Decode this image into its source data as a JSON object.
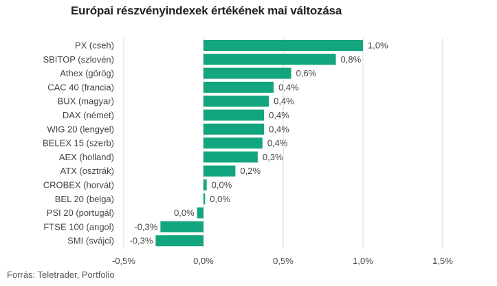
{
  "title": "Európai részvényindexek értékének mai változása",
  "source": "Forrás: Teletrader, Portfolio",
  "colors": {
    "bar": "#13a57d",
    "grid": "#d9d9d9",
    "text": "#444444"
  },
  "chart_data": {
    "type": "bar",
    "orientation": "horizontal",
    "title": "Európai részvényindexek értékének mai változása",
    "categories": [
      "PX (cseh)",
      "SBITOP (szlovén)",
      "Athex (görög)",
      "CAC 40 (francia)",
      "BUX (magyar)",
      "DAX (német)",
      "WIG 20 (lengyel)",
      "BELEX 15 (szerb)",
      "AEX (holland)",
      "ATX (osztrák)",
      "CROBEX (horvát)",
      "BEL 20 (belga)",
      "PSI 20 (portugál)",
      "FTSE 100 (angol)",
      "SMI (svájci)"
    ],
    "values": [
      1.0,
      0.83,
      0.55,
      0.44,
      0.41,
      0.38,
      0.38,
      0.37,
      0.34,
      0.2,
      0.02,
      0.01,
      -0.04,
      -0.27,
      -0.3
    ],
    "value_labels": [
      "1,0%",
      "0,8%",
      "0,6%",
      "0,4%",
      "0,4%",
      "0,4%",
      "0,4%",
      "0,4%",
      "0,3%",
      "0,2%",
      "0,0%",
      "0,0%",
      "0,0%",
      "-0,3%",
      "-0,3%"
    ],
    "xlim": [
      -0.5,
      1.5
    ],
    "xticks": [
      -0.5,
      0,
      0.5,
      1.0,
      1.5
    ],
    "xtick_labels": [
      "-0,5%",
      "0,0%",
      "0,5%",
      "1,0%",
      "1,5%"
    ],
    "xlabel": "",
    "ylabel": "",
    "grid": true,
    "legend": "none"
  }
}
